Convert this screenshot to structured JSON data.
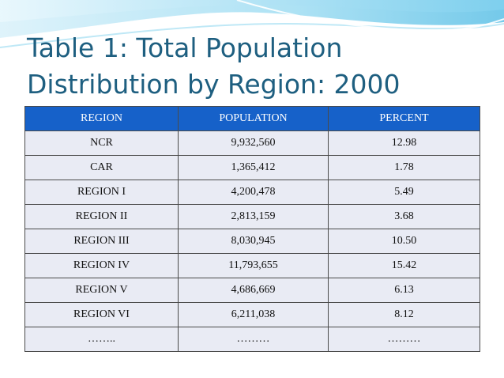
{
  "title_lines": [
    "Table 1: Total Population",
    "Distribution by Region: 2000"
  ],
  "colors": {
    "title": "#1e5f80",
    "header_bg": "#1661c9",
    "cell_bg": "#e9ebf4",
    "accent_wave": "#6ec6e8"
  },
  "table": {
    "headers": [
      "REGION",
      "POPULATION",
      "PERCENT"
    ],
    "rows": [
      [
        "NCR",
        "9,932,560",
        "12.98"
      ],
      [
        "CAR",
        "1,365,412",
        "1.78"
      ],
      [
        "REGION I",
        "4,200,478",
        "5.49"
      ],
      [
        "REGION II",
        "2,813,159",
        "3.68"
      ],
      [
        "REGION III",
        "8,030,945",
        "10.50"
      ],
      [
        "REGION IV",
        "11,793,655",
        "15.42"
      ],
      [
        "REGION V",
        "4,686,669",
        "6.13"
      ],
      [
        "REGION VI",
        "6,211,038",
        "8.12"
      ],
      [
        "……..",
        "………",
        "………"
      ]
    ]
  }
}
